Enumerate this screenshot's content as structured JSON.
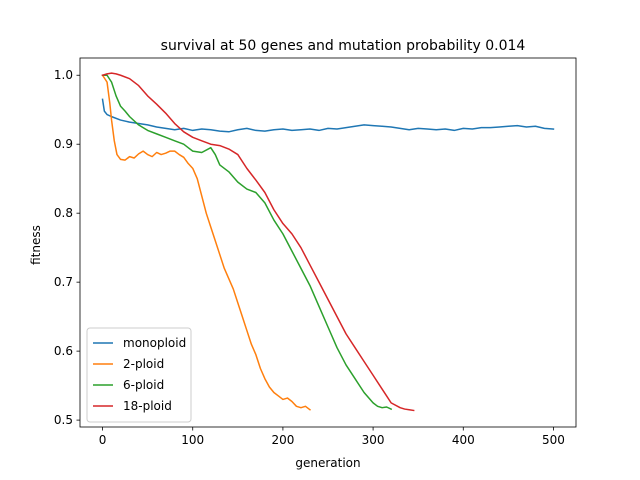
{
  "chart_data": {
    "type": "line",
    "title": "survival at 50 genes and mutation probability 0.014",
    "xlabel": "generation",
    "ylabel": "fitness",
    "xlim": [
      -25,
      525
    ],
    "ylim": [
      0.49,
      1.025
    ],
    "xticks": [
      0,
      100,
      200,
      300,
      400,
      500
    ],
    "yticks": [
      0.5,
      0.6,
      0.7,
      0.8,
      0.9,
      1.0
    ],
    "ytick_labels": [
      "0.5",
      "0.6",
      "0.7",
      "0.8",
      "0.9",
      "1.0"
    ],
    "grid": false,
    "legend_position": "lower-left",
    "series": [
      {
        "name": "monoploid",
        "color": "#1f77b4",
        "points": [
          [
            0,
            0.965
          ],
          [
            2,
            0.948
          ],
          [
            5,
            0.943
          ],
          [
            10,
            0.94
          ],
          [
            20,
            0.935
          ],
          [
            30,
            0.932
          ],
          [
            40,
            0.93
          ],
          [
            50,
            0.928
          ],
          [
            60,
            0.925
          ],
          [
            70,
            0.923
          ],
          [
            80,
            0.921
          ],
          [
            90,
            0.923
          ],
          [
            100,
            0.92
          ],
          [
            110,
            0.922
          ],
          [
            120,
            0.921
          ],
          [
            130,
            0.919
          ],
          [
            140,
            0.918
          ],
          [
            150,
            0.921
          ],
          [
            160,
            0.923
          ],
          [
            170,
            0.92
          ],
          [
            180,
            0.919
          ],
          [
            190,
            0.921
          ],
          [
            200,
            0.922
          ],
          [
            210,
            0.92
          ],
          [
            220,
            0.921
          ],
          [
            230,
            0.922
          ],
          [
            240,
            0.92
          ],
          [
            250,
            0.923
          ],
          [
            260,
            0.922
          ],
          [
            270,
            0.924
          ],
          [
            280,
            0.926
          ],
          [
            290,
            0.928
          ],
          [
            300,
            0.927
          ],
          [
            310,
            0.926
          ],
          [
            320,
            0.925
          ],
          [
            330,
            0.923
          ],
          [
            340,
            0.921
          ],
          [
            350,
            0.923
          ],
          [
            360,
            0.922
          ],
          [
            370,
            0.921
          ],
          [
            380,
            0.922
          ],
          [
            390,
            0.92
          ],
          [
            400,
            0.923
          ],
          [
            410,
            0.922
          ],
          [
            420,
            0.924
          ],
          [
            430,
            0.924
          ],
          [
            440,
            0.925
          ],
          [
            450,
            0.926
          ],
          [
            460,
            0.927
          ],
          [
            470,
            0.925
          ],
          [
            480,
            0.926
          ],
          [
            490,
            0.923
          ],
          [
            500,
            0.922
          ]
        ]
      },
      {
        "name": "2-ploid",
        "color": "#ff7f0e",
        "points": [
          [
            0,
            1.0
          ],
          [
            5,
            0.99
          ],
          [
            8,
            0.96
          ],
          [
            10,
            0.935
          ],
          [
            13,
            0.905
          ],
          [
            16,
            0.885
          ],
          [
            20,
            0.878
          ],
          [
            25,
            0.877
          ],
          [
            30,
            0.882
          ],
          [
            35,
            0.88
          ],
          [
            40,
            0.886
          ],
          [
            45,
            0.89
          ],
          [
            50,
            0.885
          ],
          [
            55,
            0.882
          ],
          [
            60,
            0.888
          ],
          [
            65,
            0.885
          ],
          [
            70,
            0.887
          ],
          [
            75,
            0.89
          ],
          [
            80,
            0.89
          ],
          [
            85,
            0.885
          ],
          [
            90,
            0.881
          ],
          [
            95,
            0.872
          ],
          [
            100,
            0.865
          ],
          [
            105,
            0.85
          ],
          [
            110,
            0.825
          ],
          [
            115,
            0.8
          ],
          [
            120,
            0.78
          ],
          [
            125,
            0.76
          ],
          [
            130,
            0.74
          ],
          [
            135,
            0.72
          ],
          [
            140,
            0.705
          ],
          [
            145,
            0.69
          ],
          [
            150,
            0.67
          ],
          [
            155,
            0.65
          ],
          [
            160,
            0.63
          ],
          [
            165,
            0.61
          ],
          [
            170,
            0.595
          ],
          [
            175,
            0.575
          ],
          [
            180,
            0.56
          ],
          [
            185,
            0.548
          ],
          [
            190,
            0.54
          ],
          [
            195,
            0.535
          ],
          [
            200,
            0.53
          ],
          [
            205,
            0.532
          ],
          [
            210,
            0.527
          ],
          [
            215,
            0.52
          ],
          [
            220,
            0.518
          ],
          [
            225,
            0.52
          ],
          [
            230,
            0.515
          ]
        ]
      },
      {
        "name": "6-ploid",
        "color": "#2ca02c",
        "points": [
          [
            0,
            1.0
          ],
          [
            5,
            1.0
          ],
          [
            10,
            0.99
          ],
          [
            15,
            0.97
          ],
          [
            20,
            0.955
          ],
          [
            25,
            0.948
          ],
          [
            30,
            0.94
          ],
          [
            40,
            0.928
          ],
          [
            50,
            0.92
          ],
          [
            60,
            0.915
          ],
          [
            70,
            0.91
          ],
          [
            80,
            0.905
          ],
          [
            90,
            0.9
          ],
          [
            95,
            0.895
          ],
          [
            100,
            0.89
          ],
          [
            110,
            0.888
          ],
          [
            120,
            0.895
          ],
          [
            125,
            0.885
          ],
          [
            130,
            0.87
          ],
          [
            140,
            0.86
          ],
          [
            150,
            0.845
          ],
          [
            160,
            0.835
          ],
          [
            170,
            0.83
          ],
          [
            180,
            0.815
          ],
          [
            190,
            0.79
          ],
          [
            200,
            0.77
          ],
          [
            210,
            0.745
          ],
          [
            220,
            0.72
          ],
          [
            230,
            0.695
          ],
          [
            240,
            0.665
          ],
          [
            250,
            0.635
          ],
          [
            260,
            0.605
          ],
          [
            270,
            0.58
          ],
          [
            280,
            0.56
          ],
          [
            290,
            0.54
          ],
          [
            300,
            0.525
          ],
          [
            305,
            0.52
          ],
          [
            310,
            0.518
          ],
          [
            315,
            0.519
          ],
          [
            320,
            0.516
          ]
        ]
      },
      {
        "name": "18-ploid",
        "color": "#d62728",
        "points": [
          [
            0,
            1.0
          ],
          [
            5,
            1.002
          ],
          [
            10,
            1.003
          ],
          [
            15,
            1.002
          ],
          [
            20,
            1.0
          ],
          [
            30,
            0.995
          ],
          [
            40,
            0.985
          ],
          [
            50,
            0.97
          ],
          [
            60,
            0.958
          ],
          [
            70,
            0.945
          ],
          [
            80,
            0.93
          ],
          [
            90,
            0.918
          ],
          [
            100,
            0.91
          ],
          [
            110,
            0.905
          ],
          [
            120,
            0.9
          ],
          [
            130,
            0.898
          ],
          [
            140,
            0.893
          ],
          [
            150,
            0.885
          ],
          [
            160,
            0.865
          ],
          [
            170,
            0.848
          ],
          [
            180,
            0.83
          ],
          [
            190,
            0.805
          ],
          [
            200,
            0.785
          ],
          [
            210,
            0.77
          ],
          [
            220,
            0.75
          ],
          [
            230,
            0.725
          ],
          [
            240,
            0.7
          ],
          [
            250,
            0.675
          ],
          [
            260,
            0.65
          ],
          [
            270,
            0.625
          ],
          [
            280,
            0.605
          ],
          [
            290,
            0.585
          ],
          [
            300,
            0.565
          ],
          [
            310,
            0.545
          ],
          [
            315,
            0.535
          ],
          [
            320,
            0.525
          ],
          [
            330,
            0.518
          ],
          [
            335,
            0.516
          ],
          [
            340,
            0.515
          ],
          [
            345,
            0.514
          ]
        ]
      }
    ]
  }
}
